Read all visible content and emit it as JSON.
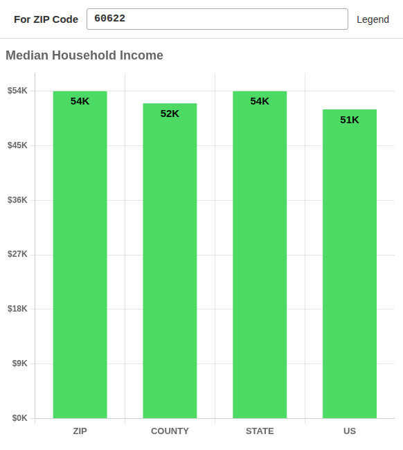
{
  "chart_data": {
    "type": "bar",
    "title": "Median Household Income",
    "subtitle": "For ZIP Code",
    "annotations": [
      "60622",
      "Legend"
    ],
    "categories": [
      "ZIP",
      "COUNTY",
      "STATE",
      "US"
    ],
    "values": [
      54000,
      52000,
      54000,
      51000
    ],
    "value_labels": [
      "54K",
      "52K",
      "54K",
      "51K"
    ],
    "data_labels": true,
    "color": "#4cd964",
    "ylim": [
      0,
      57000
    ],
    "yticks": [
      {
        "value": 0,
        "label": "$0K"
      },
      {
        "value": 9000,
        "label": "$9K"
      },
      {
        "value": 18000,
        "label": "$18K"
      },
      {
        "value": 27000,
        "label": "$27K"
      },
      {
        "value": 36000,
        "label": "$36K"
      },
      {
        "value": 45000,
        "label": "$45K"
      },
      {
        "value": 54000,
        "label": "$54K"
      }
    ],
    "grid": true
  }
}
